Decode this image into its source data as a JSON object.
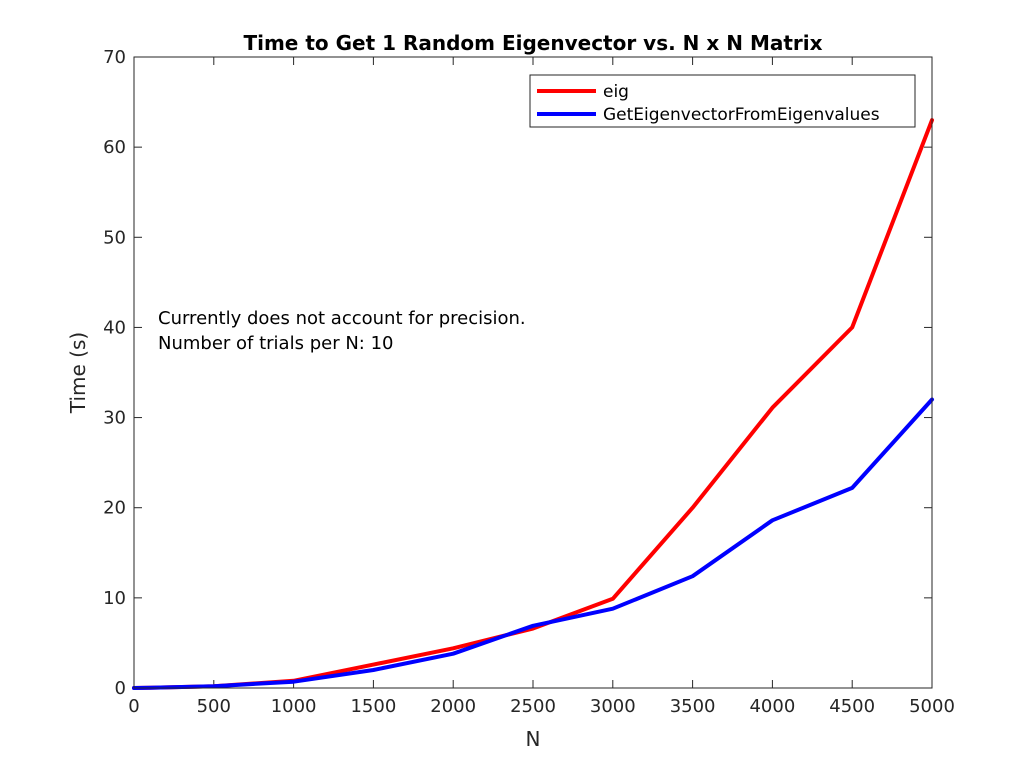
{
  "chart_data": {
    "type": "line",
    "title": "Time to Get 1 Random Eigenvector vs. N x N Matrix",
    "xlabel": "N",
    "ylabel": "Time (s)",
    "xlim": [
      0,
      5000
    ],
    "ylim": [
      0,
      70
    ],
    "xticks": [
      0,
      500,
      1000,
      1500,
      2000,
      2500,
      3000,
      3500,
      4000,
      4500,
      5000
    ],
    "yticks": [
      0,
      10,
      20,
      30,
      40,
      50,
      60,
      70
    ],
    "grid": false,
    "legend_location": "top-right",
    "annotation": [
      "Currently does not account for precision.",
      "Number of trials per N: 10"
    ],
    "x": [
      0,
      100,
      500,
      1000,
      1500,
      2000,
      2500,
      3000,
      3500,
      4000,
      4500,
      5000
    ],
    "series": [
      {
        "name": "eig",
        "color": "#ff0000",
        "values": [
          0,
          0.02,
          0.2,
          0.8,
          2.6,
          4.4,
          6.6,
          9.9,
          20.0,
          31.1,
          40.0,
          63.0
        ]
      },
      {
        "name": "GetEigenvectorFromEigenvalues",
        "color": "#0000ff",
        "values": [
          0,
          0.02,
          0.2,
          0.7,
          2.0,
          3.8,
          6.9,
          8.8,
          12.4,
          18.6,
          22.2,
          32.0
        ]
      }
    ]
  }
}
